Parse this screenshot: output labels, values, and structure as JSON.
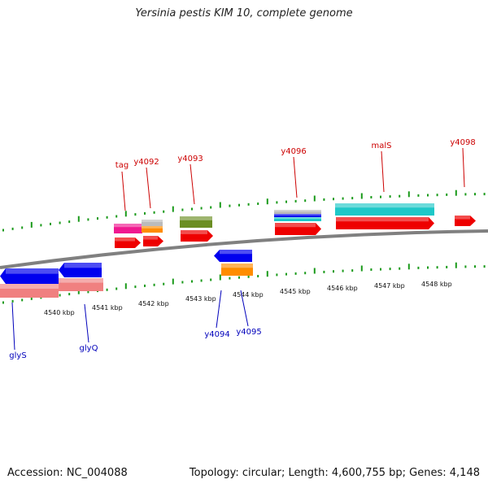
{
  "title": "Yersinia pestis KIM 10, complete genome",
  "footer": {
    "accession": "Accession: NC_004088",
    "summary": "Topology: circular; Length: 4,600,755 bp; Genes: 4,148"
  },
  "colors": {
    "backbone": "#808080",
    "tick": "#1a9a1a",
    "forward_label": "#cc0000",
    "reverse_label": "#0000bb",
    "red": "#ee0000",
    "blue": "#0000ee",
    "salmon": "#f08080",
    "cyan": "#1ec8c8",
    "orange": "#ff8c00",
    "olive": "#6b8e23",
    "magenta": "#f01890",
    "grey": "#bbbbbb"
  },
  "scale": {
    "tick_labels": [
      "4540 kbp",
      "4541 kbp",
      "4542 kbp",
      "4543 kbp",
      "4544 kbp",
      "4545 kbp",
      "4546 kbp",
      "4547 kbp",
      "4548 kbp"
    ]
  },
  "forward_genes": [
    "tag",
    "y4092",
    "y4093",
    "y4096",
    "malS",
    "y4098"
  ],
  "reverse_genes": [
    "glyS",
    "glyQ",
    "y4094",
    "y4095"
  ]
}
